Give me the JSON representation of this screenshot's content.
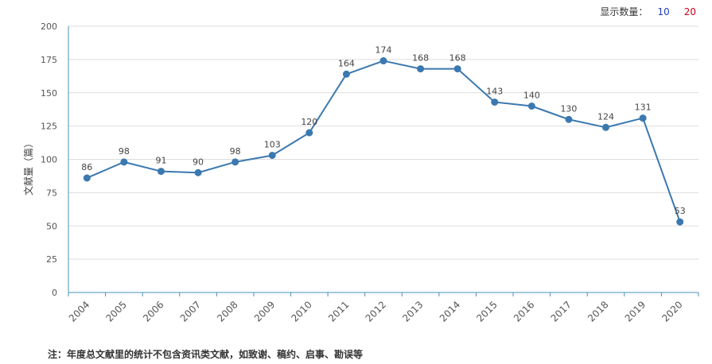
{
  "controls": {
    "display_count_label": "显示数量：",
    "option_10": "10",
    "option_20": "20"
  },
  "footnote": "注：年度总文献里的统计不包含资讯类文献，如致谢、稿约、启事、勘误等",
  "colors": {
    "line": "#3b78b0",
    "point": "#3b78b0",
    "grid": "#dddddd",
    "axis": "#4a90b8"
  },
  "chart_data": {
    "type": "line",
    "title": "",
    "xlabel": "",
    "ylabel": "文献量（篇）",
    "ylim": [
      0,
      200
    ],
    "yticks": [
      0,
      25,
      50,
      75,
      100,
      125,
      150,
      175,
      200
    ],
    "grid": true,
    "categories": [
      "2004",
      "2005",
      "2006",
      "2007",
      "2008",
      "2009",
      "2010",
      "2011",
      "2012",
      "2013",
      "2014",
      "2015",
      "2016",
      "2017",
      "2018",
      "2019",
      "2020"
    ],
    "series": [
      {
        "values": [
          86,
          98,
          91,
          90,
          98,
          103,
          120,
          164,
          174,
          168,
          168,
          143,
          140,
          130,
          124,
          131,
          53
        ]
      }
    ]
  }
}
